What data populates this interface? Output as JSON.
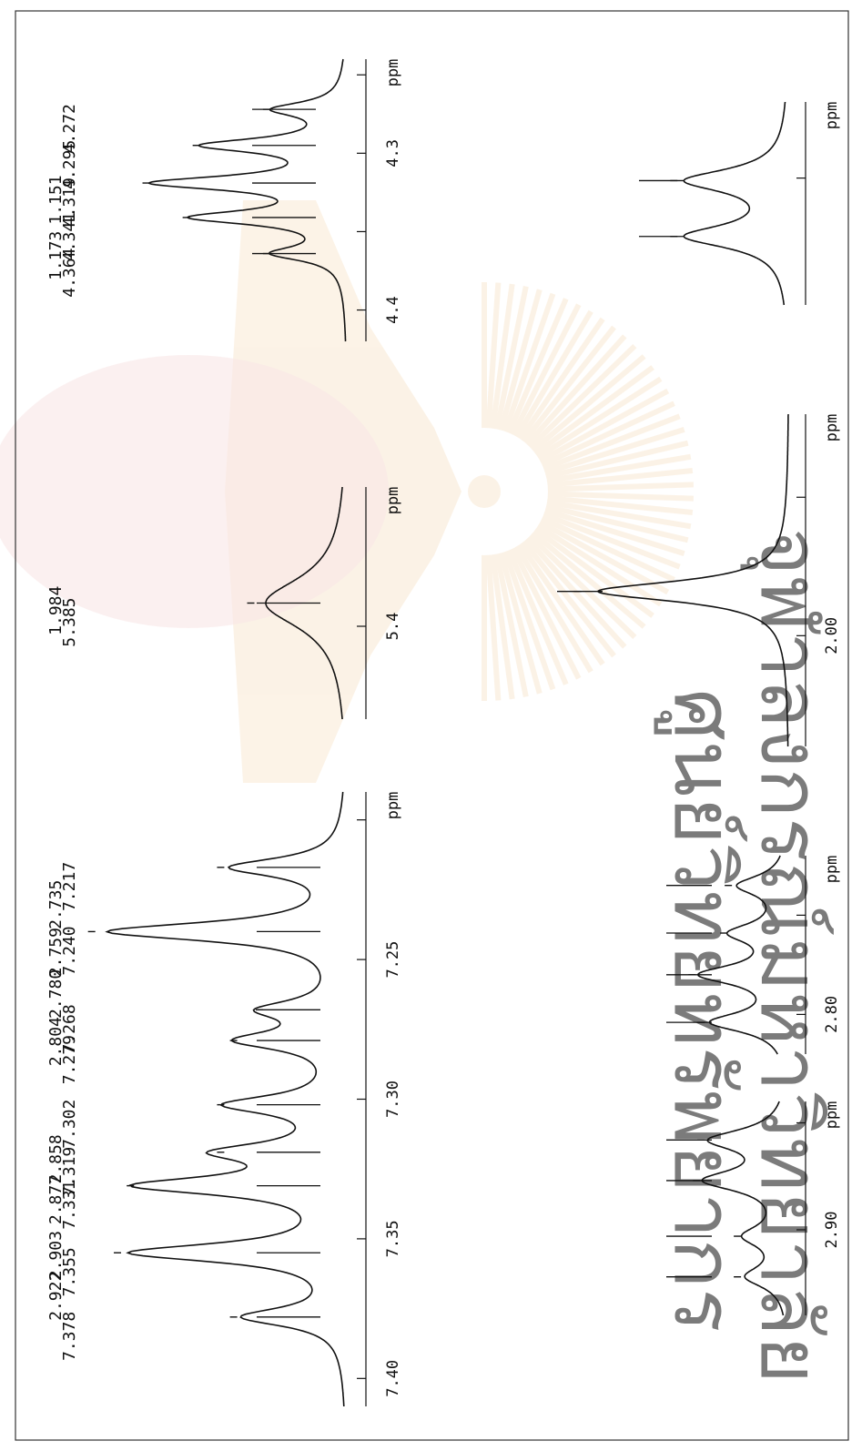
{
  "colors": {
    "ink": "#111111",
    "frame": "#333333",
    "watermark": "#e59a3a",
    "watermark_text": "#d8b7b7"
  },
  "watermark": {
    "line1": "ศูนย์วิทยทรัพยากร",
    "line2": "จุฬาลงกรณ์มหาวิทยาลัย",
    "emblem": "university-emblem-icon"
  },
  "chart_data": [
    {
      "type": "line",
      "id": "spectrum-2.9",
      "xlabel": "ppm",
      "x_range": [
        2.94,
        2.84
      ],
      "ticks": [
        {
          "value": 2.9,
          "label": "2.90"
        },
        {
          "value": 2.85,
          "label": ""
        }
      ],
      "peaks": [
        2.922,
        2.903,
        2.877,
        2.858
      ],
      "peak_labels": [
        "2.922",
        "2.903",
        "2.877",
        "2.858"
      ],
      "heights": [
        0.45,
        0.45,
        0.9,
        0.85
      ],
      "width": 0.006
    },
    {
      "type": "line",
      "id": "spectrum-2.8",
      "xlabel": "ppm",
      "x_range": [
        2.82,
        2.72
      ],
      "ticks": [
        {
          "value": 2.8,
          "label": "2.80"
        },
        {
          "value": 2.75,
          "label": ""
        }
      ],
      "peaks": [
        2.804,
        2.78,
        2.759,
        2.735
      ],
      "peak_labels": [
        "2.804",
        "2.780",
        "2.759",
        "2.735"
      ],
      "heights": [
        0.85,
        0.95,
        0.6,
        0.55
      ],
      "width": 0.006
    },
    {
      "type": "line",
      "id": "spectrum-1.98",
      "xlabel": "ppm",
      "x_range": [
        2.04,
        1.92
      ],
      "ticks": [
        {
          "value": 2.0,
          "label": "2.00"
        },
        {
          "value": 1.95,
          "label": ""
        }
      ],
      "peaks": [
        1.984
      ],
      "peak_labels": [
        "1.984"
      ],
      "heights": [
        1.0
      ],
      "width": 0.0045
    },
    {
      "type": "line",
      "id": "spectrum-1.16",
      "xlabel": "ppm",
      "x_range": [
        1.2,
        1.12
      ],
      "ticks": [
        {
          "value": 1.15,
          "label": ""
        }
      ],
      "peaks": [
        1.173,
        1.151
      ],
      "peak_labels": [
        "1.173",
        "1.151"
      ],
      "heights": [
        0.95,
        0.95
      ],
      "width": 0.0055
    },
    {
      "type": "line",
      "id": "spectrum-7.3",
      "xlabel": "ppm",
      "x_range": [
        7.41,
        7.19
      ],
      "ticks": [
        {
          "value": 7.4,
          "label": "7.40"
        },
        {
          "value": 7.35,
          "label": "7.35"
        },
        {
          "value": 7.3,
          "label": "7.30"
        },
        {
          "value": 7.25,
          "label": "7.25"
        },
        {
          "value": 7.2,
          "label": ""
        }
      ],
      "peaks": [
        7.378,
        7.355,
        7.331,
        7.319,
        7.302,
        7.279,
        7.268,
        7.24,
        7.217
      ],
      "peak_labels": [
        "7.378",
        "7.355",
        "7.331",
        "7.319",
        "7.302",
        "7.279",
        "7.268",
        "7.240",
        "7.217"
      ],
      "heights": [
        0.4,
        0.85,
        0.8,
        0.45,
        0.45,
        0.4,
        0.3,
        0.95,
        0.45
      ],
      "width": 0.004
    },
    {
      "type": "line",
      "id": "spectrum-5.38",
      "xlabel": "ppm",
      "x_range": [
        5.46,
        5.31
      ],
      "ticks": [
        {
          "value": 5.4,
          "label": "5.4"
        }
      ],
      "peaks": [
        5.385
      ],
      "peak_labels": [
        "5.385"
      ],
      "heights": [
        0.45
      ],
      "width": 0.02
    },
    {
      "type": "line",
      "id": "spectrum-4.32",
      "xlabel": "ppm",
      "x_range": [
        4.42,
        4.24
      ],
      "ticks": [
        {
          "value": 4.4,
          "label": "4.4"
        },
        {
          "value": 4.35,
          "label": ""
        },
        {
          "value": 4.3,
          "label": "4.3"
        },
        {
          "value": 4.25,
          "label": ""
        }
      ],
      "peaks": [
        4.364,
        4.341,
        4.319,
        4.295,
        4.272
      ],
      "peak_labels": [
        "4.364",
        "4.341",
        "4.319",
        "4.295",
        "4.272"
      ],
      "heights": [
        0.35,
        0.75,
        0.95,
        0.7,
        0.35
      ],
      "width": 0.0055
    }
  ]
}
